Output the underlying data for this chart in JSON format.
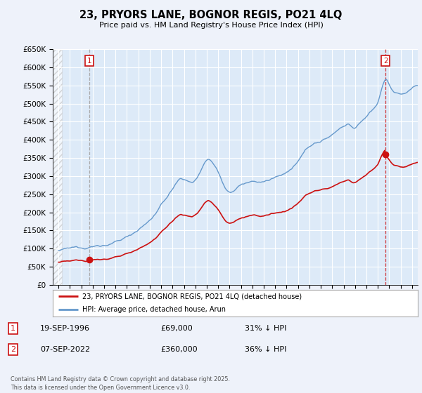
{
  "title": "23, PRYORS LANE, BOGNOR REGIS, PO21 4LQ",
  "subtitle": "Price paid vs. HM Land Registry's House Price Index (HPI)",
  "background_color": "#eef2fa",
  "plot_bg_color": "#ddeaf8",
  "grid_color": "#ffffff",
  "hpi_color": "#6699cc",
  "price_color": "#cc1111",
  "sale1_vline_color": "#aaaaaa",
  "sale1_vline_style": "--",
  "sale2_vline_color": "#cc1111",
  "sale2_vline_style": "--",
  "ylim": [
    0,
    650000
  ],
  "yticks": [
    0,
    50000,
    100000,
    150000,
    200000,
    250000,
    300000,
    350000,
    400000,
    450000,
    500000,
    550000,
    600000,
    650000
  ],
  "xlim_start": 1993.5,
  "xlim_end": 2025.5,
  "sale1_x": 1996.72,
  "sale1_y": 69000,
  "sale2_x": 2022.68,
  "sale2_y": 360000,
  "legend_line1": "23, PRYORS LANE, BOGNOR REGIS, PO21 4LQ (detached house)",
  "legend_line2": "HPI: Average price, detached house, Arun",
  "sale1_date": "19-SEP-1996",
  "sale1_price": "£69,000",
  "sale1_hpi": "31% ↓ HPI",
  "sale2_date": "07-SEP-2022",
  "sale2_price": "£360,000",
  "sale2_hpi": "36% ↓ HPI",
  "footer": "Contains HM Land Registry data © Crown copyright and database right 2025.\nThis data is licensed under the Open Government Licence v3.0."
}
